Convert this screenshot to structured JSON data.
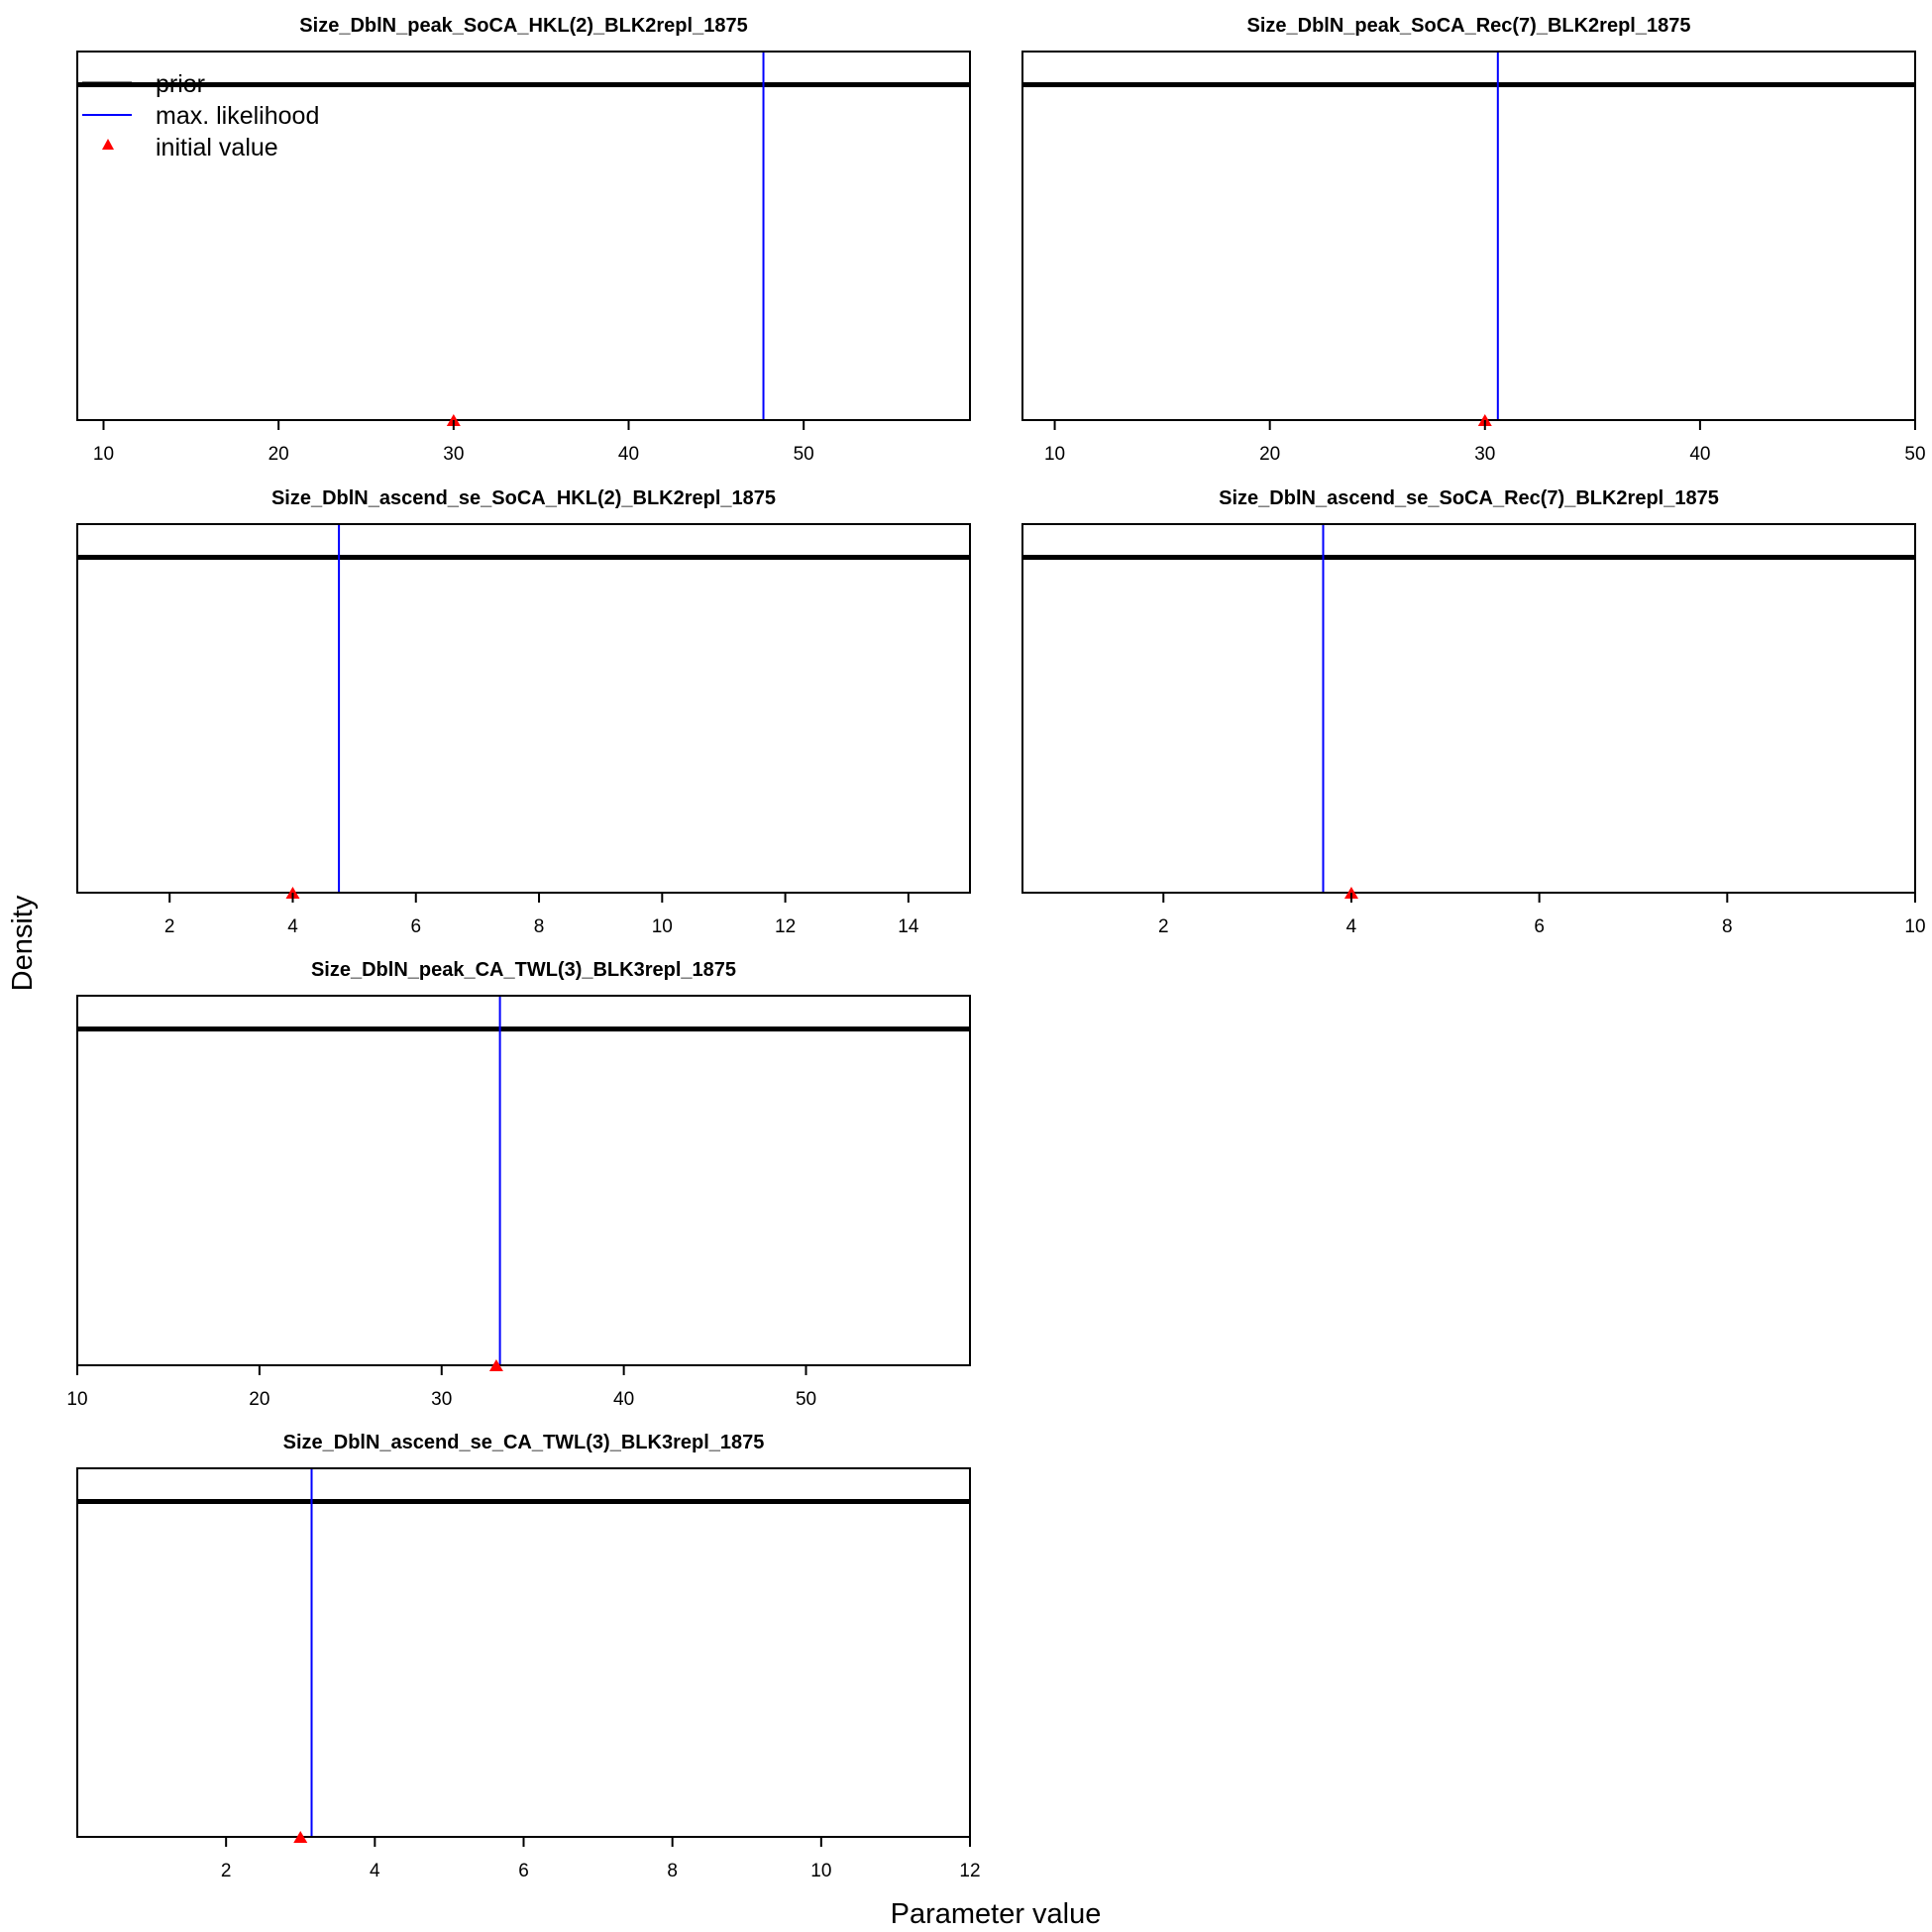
{
  "figure": {
    "ylabel": "Density",
    "xlabel": "Parameter value"
  },
  "legend": {
    "placement": "top-left of first panel",
    "entries": [
      {
        "label": "prior",
        "color": "#000000",
        "kind": "thick-line"
      },
      {
        "label": "max. likelihood",
        "color": "#0000ff",
        "kind": "line"
      },
      {
        "label": "initial value",
        "color": "#ff0000",
        "kind": "triangle"
      }
    ]
  },
  "colors": {
    "prior": "#000000",
    "mle": "#0000ff",
    "initial": "#ff0000"
  },
  "chart_data": [
    {
      "type": "line",
      "title": "Size_DblN_peak_SoCA_HKL(2)_BLK2repl_1875",
      "xlim": [
        8.5,
        59.5
      ],
      "ticks": [
        10,
        20,
        30,
        40,
        50
      ],
      "prior_level": 0.91,
      "mle": 47.7,
      "initial": 30
    },
    {
      "type": "line",
      "title": "Size_DblN_peak_SoCA_Rec(7)_BLK2repl_1875",
      "xlim": [
        8.5,
        50
      ],
      "ticks": [
        10,
        20,
        30,
        40,
        50
      ],
      "prior_level": 0.91,
      "mle": 30.6,
      "initial": 30
    },
    {
      "type": "line",
      "title": "Size_DblN_ascend_se_SoCA_HKL(2)_BLK2repl_1875",
      "xlim": [
        0.5,
        15
      ],
      "ticks": [
        2,
        4,
        6,
        8,
        10,
        12,
        14
      ],
      "prior_level": 0.91,
      "mle": 4.75,
      "initial": 4
    },
    {
      "type": "line",
      "title": "Size_DblN_ascend_se_SoCA_Rec(7)_BLK2repl_1875",
      "xlim": [
        0.5,
        10
      ],
      "ticks": [
        2,
        4,
        6,
        8,
        10
      ],
      "prior_level": 0.91,
      "mle": 3.7,
      "initial": 4
    },
    {
      "type": "line",
      "title": "Size_DblN_peak_CA_TWL(3)_BLK3repl_1875",
      "xlim": [
        10,
        59
      ],
      "ticks": [
        10,
        20,
        30,
        40,
        50
      ],
      "prior_level": 0.91,
      "mle": 33.2,
      "initial": 33
    },
    {
      "type": "line",
      "title": "Size_DblN_ascend_se_CA_TWL(3)_BLK3repl_1875",
      "xlim": [
        0,
        12
      ],
      "ticks": [
        2,
        4,
        6,
        8,
        10,
        12
      ],
      "prior_level": 0.91,
      "mle": 3.15,
      "initial": 3
    }
  ]
}
